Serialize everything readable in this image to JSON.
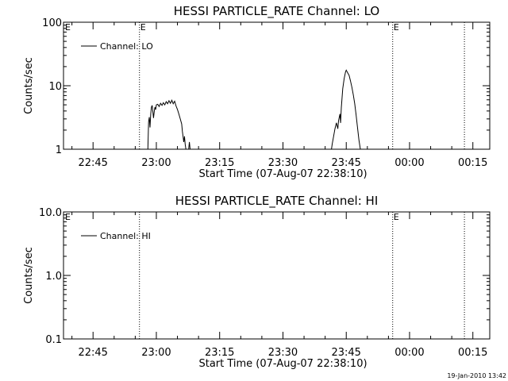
{
  "colors": {
    "background": "#ffffff",
    "foreground": "#000000"
  },
  "footer_timestamp": "19-Jan-2010 13:42",
  "chart_data": [
    {
      "type": "line",
      "title": "HESSI PARTICLE_RATE Channel: LO",
      "xlabel": "Start Time (07-Aug-07 22:38:10)",
      "ylabel": "Counts/sec",
      "y_scale": "log",
      "ylim": [
        1,
        100
      ],
      "y_ticks": [
        {
          "value": 1,
          "label": "1"
        },
        {
          "value": 10,
          "label": "10"
        },
        {
          "value": 100,
          "label": "100"
        }
      ],
      "xlim": [
        "22:38",
        "00:19"
      ],
      "x_ticks": [
        {
          "value": "22:45",
          "label": "22:45"
        },
        {
          "value": "23:00",
          "label": "23:00"
        },
        {
          "value": "23:15",
          "label": "23:15"
        },
        {
          "value": "23:30",
          "label": "23:30"
        },
        {
          "value": "23:45",
          "label": "23:45"
        },
        {
          "value": "00:00",
          "label": "00:00"
        },
        {
          "value": "00:15",
          "label": "00:15"
        }
      ],
      "legend": {
        "position": "top-left",
        "entries": [
          "Channel: LO"
        ]
      },
      "eclipse_markers": [
        {
          "time": "22:56",
          "label": "E"
        },
        {
          "time": "23:56",
          "label": "E"
        },
        {
          "time": "00:13",
          "label": ""
        }
      ],
      "corner_label": "E",
      "series": [
        {
          "name": "Channel: LO",
          "segments": [
            [
              [
                "22:58:00",
                1
              ],
              [
                "22:58:10",
                2.7
              ],
              [
                "22:58:20",
                3.2
              ],
              [
                "22:58:30",
                2.2
              ],
              [
                "22:58:40",
                3.6
              ],
              [
                "22:58:50",
                4.6
              ],
              [
                "22:59:00",
                4.9
              ],
              [
                "22:59:10",
                4.0
              ],
              [
                "22:59:20",
                3.1
              ],
              [
                "22:59:30",
                3.9
              ],
              [
                "22:59:40",
                4.6
              ],
              [
                "22:59:50",
                4.2
              ],
              [
                "23:00:00",
                5.0
              ],
              [
                "23:00:20",
                5.1
              ],
              [
                "23:00:40",
                4.7
              ],
              [
                "23:01:00",
                5.3
              ],
              [
                "23:01:20",
                4.9
              ],
              [
                "23:01:40",
                5.4
              ],
              [
                "23:02:00",
                5.0
              ],
              [
                "23:02:20",
                5.6
              ],
              [
                "23:02:40",
                5.2
              ],
              [
                "23:03:00",
                5.8
              ],
              [
                "23:03:20",
                5.3
              ],
              [
                "23:03:40",
                5.9
              ],
              [
                "23:04:00",
                5.2
              ],
              [
                "23:04:20",
                5.7
              ],
              [
                "23:04:40",
                4.8
              ],
              [
                "23:05:00",
                4.2
              ],
              [
                "23:05:20",
                3.6
              ],
              [
                "23:05:40",
                3.0
              ],
              [
                "23:06:00",
                2.5
              ],
              [
                "23:06:10",
                1.9
              ],
              [
                "23:06:20",
                1.6
              ],
              [
                "23:06:30",
                1.3
              ],
              [
                "23:06:40",
                1.6
              ],
              [
                "23:06:50",
                1.2
              ],
              [
                "23:07:00",
                1
              ]
            ],
            [
              [
                "23:07:40",
                1
              ],
              [
                "23:07:50",
                1.3
              ],
              [
                "23:08:00",
                1
              ]
            ],
            [
              [
                "23:41:30",
                1
              ],
              [
                "23:41:40",
                1.2
              ],
              [
                "23:42:00",
                1.6
              ],
              [
                "23:42:20",
                2.1
              ],
              [
                "23:42:40",
                2.6
              ],
              [
                "23:43:00",
                2.1
              ],
              [
                "23:43:10",
                2.8
              ],
              [
                "23:43:30",
                3.6
              ],
              [
                "23:43:40",
                2.6
              ],
              [
                "23:43:50",
                4.5
              ],
              [
                "23:44:10",
                9.0
              ],
              [
                "23:44:30",
                13.0
              ],
              [
                "23:44:50",
                16.5
              ],
              [
                "23:45:00",
                17.6
              ],
              [
                "23:45:20",
                16.0
              ],
              [
                "23:45:40",
                14.6
              ],
              [
                "23:46:00",
                12.0
              ],
              [
                "23:46:20",
                9.5
              ],
              [
                "23:46:40",
                7.2
              ],
              [
                "23:47:00",
                5.2
              ],
              [
                "23:47:20",
                3.5
              ],
              [
                "23:47:40",
                2.2
              ],
              [
                "23:48:00",
                1.4
              ],
              [
                "23:48:20",
                1
              ]
            ]
          ]
        }
      ]
    },
    {
      "type": "line",
      "title": "HESSI PARTICLE_RATE Channel: HI",
      "xlabel": "Start Time (07-Aug-07 22:38:10)",
      "ylabel": "Counts/sec",
      "y_scale": "log",
      "ylim": [
        0.1,
        10
      ],
      "y_ticks": [
        {
          "value": 0.1,
          "label": "0.1"
        },
        {
          "value": 1,
          "label": "1.0"
        },
        {
          "value": 10,
          "label": "10.0"
        }
      ],
      "xlim": [
        "22:38",
        "00:19"
      ],
      "x_ticks": [
        {
          "value": "22:45",
          "label": "22:45"
        },
        {
          "value": "23:00",
          "label": "23:00"
        },
        {
          "value": "23:15",
          "label": "23:15"
        },
        {
          "value": "23:30",
          "label": "23:30"
        },
        {
          "value": "23:45",
          "label": "23:45"
        },
        {
          "value": "00:00",
          "label": "00:00"
        },
        {
          "value": "00:15",
          "label": "00:15"
        }
      ],
      "legend": {
        "position": "top-left",
        "entries": [
          "Channel: HI"
        ]
      },
      "eclipse_markers": [
        {
          "time": "22:56",
          "label": ""
        },
        {
          "time": "23:56",
          "label": "E"
        },
        {
          "time": "00:13",
          "label": ""
        }
      ],
      "corner_label": "E",
      "series": [
        {
          "name": "Channel: HI",
          "segments": []
        }
      ]
    }
  ]
}
